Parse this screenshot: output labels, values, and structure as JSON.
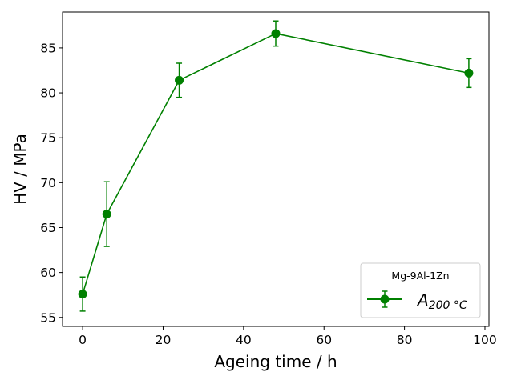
{
  "chart_data": {
    "type": "line",
    "xlabel": "Ageing time / h",
    "ylabel": "HV / MPa",
    "xlim": [
      -5,
      101
    ],
    "ylim": [
      54,
      89
    ],
    "xticks": [
      0,
      20,
      40,
      60,
      80,
      100
    ],
    "yticks": [
      55,
      60,
      65,
      70,
      75,
      80,
      85
    ],
    "grid": false,
    "legend": {
      "title": "Mg-9Al-1Zn",
      "placement": "lower-right"
    },
    "series": [
      {
        "name": "A",
        "name_subscript": "200 °C",
        "color": "#008000",
        "marker": "circle",
        "x": [
          0,
          6,
          24,
          48,
          96
        ],
        "y": [
          57.6,
          66.5,
          81.4,
          86.6,
          82.2
        ],
        "yerr": [
          1.9,
          3.6,
          1.9,
          1.4,
          1.6
        ]
      }
    ]
  }
}
